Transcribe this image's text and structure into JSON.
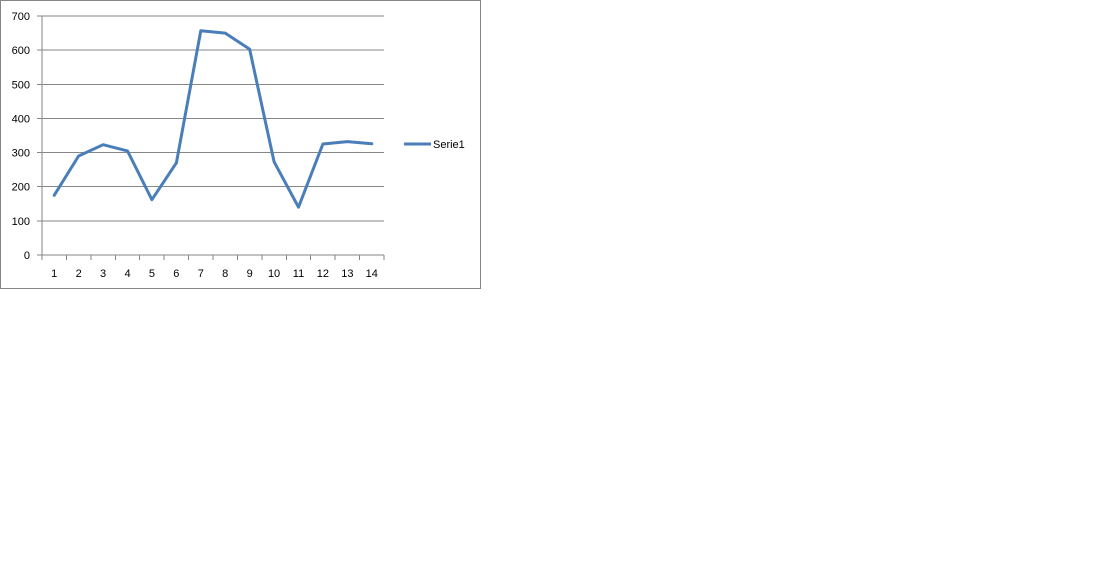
{
  "chart_data": {
    "type": "line",
    "categories": [
      "1",
      "2",
      "3",
      "4",
      "5",
      "6",
      "7",
      "8",
      "9",
      "10",
      "11",
      "12",
      "13",
      "14"
    ],
    "series": [
      {
        "name": "Serie1",
        "values": [
          175,
          290,
          323,
          305,
          162,
          270,
          657,
          650,
          603,
          273,
          140,
          325,
          332,
          326
        ]
      }
    ],
    "yticks": [
      "0",
      "100",
      "200",
      "300",
      "400",
      "500",
      "600",
      "700"
    ],
    "ylim": [
      0,
      700
    ],
    "grid": true,
    "legend_position": "right",
    "colors": {
      "series": "#4a7ebb",
      "grid": "#868686",
      "axis": "#868686"
    }
  }
}
